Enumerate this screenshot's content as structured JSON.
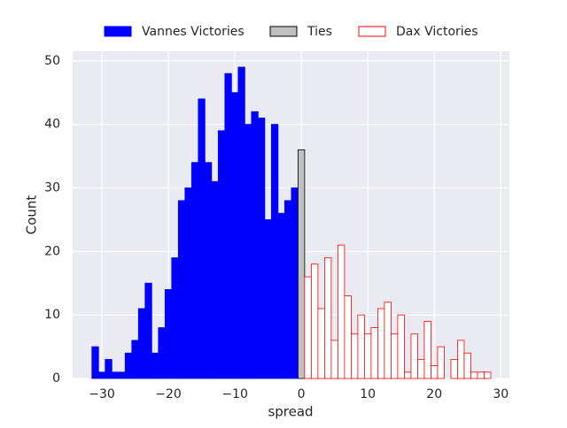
{
  "chart_data": {
    "type": "histogram",
    "x_label": "spread",
    "y_label": "Count",
    "xlim": [
      -34.4,
      31.3
    ],
    "ylim": [
      0,
      51.5
    ],
    "xticks": [
      {
        "value": -30,
        "label": "−30"
      },
      {
        "value": -20,
        "label": "−20"
      },
      {
        "value": -10,
        "label": "−10"
      },
      0,
      10,
      20,
      30
    ],
    "yticks": [
      0,
      10,
      20,
      30,
      40,
      50
    ],
    "grid": true,
    "legend": "top",
    "series": [
      {
        "name": "Vannes Victories",
        "color": "#0000ff",
        "edgecolor": "#0000ff",
        "bins": [
          -31.5,
          -30.5,
          -29.5,
          -28.5,
          -27.5,
          -26.5,
          -25.5,
          -24.5,
          -23.5,
          -22.5,
          -21.5,
          -20.5,
          -19.5,
          -18.5,
          -17.5,
          -16.5,
          -15.5,
          -14.5,
          -13.5,
          -12.5,
          -11.5,
          -10.5,
          -9.5,
          -8.5,
          -7.5,
          -6.5,
          -5.5,
          -4.5,
          -3.5,
          -2.5,
          -1.5,
          -0.5
        ],
        "values": [
          5,
          1,
          3,
          1,
          1,
          4,
          6,
          11,
          15,
          4,
          8,
          14,
          19,
          28,
          30,
          34,
          44,
          34,
          31,
          39,
          48,
          45,
          49,
          40,
          42,
          41,
          25,
          40,
          26,
          28,
          30
        ]
      },
      {
        "name": "Ties",
        "color": "#c0c0c0",
        "edgecolor": "#000000",
        "bins": [
          -0.5,
          0.5
        ],
        "values": [
          36
        ]
      },
      {
        "name": "Dax Victories",
        "color": "#ffffff",
        "edgecolor": "#ff0000",
        "bins": [
          0.5,
          1.5,
          2.5,
          3.5,
          4.5,
          5.5,
          6.5,
          7.5,
          8.5,
          9.5,
          10.5,
          11.5,
          12.5,
          13.5,
          14.5,
          15.5,
          16.5,
          17.5,
          18.5,
          19.5,
          20.5,
          21.5,
          22.5,
          23.5,
          24.5,
          25.5,
          26.5,
          27.5,
          28.5
        ],
        "values": [
          16,
          18,
          11,
          19,
          6,
          21,
          13,
          7,
          10,
          7,
          8,
          11,
          12,
          7,
          10,
          1,
          7,
          3,
          9,
          2,
          5,
          0,
          3,
          6,
          4,
          1,
          1,
          1
        ]
      }
    ]
  }
}
